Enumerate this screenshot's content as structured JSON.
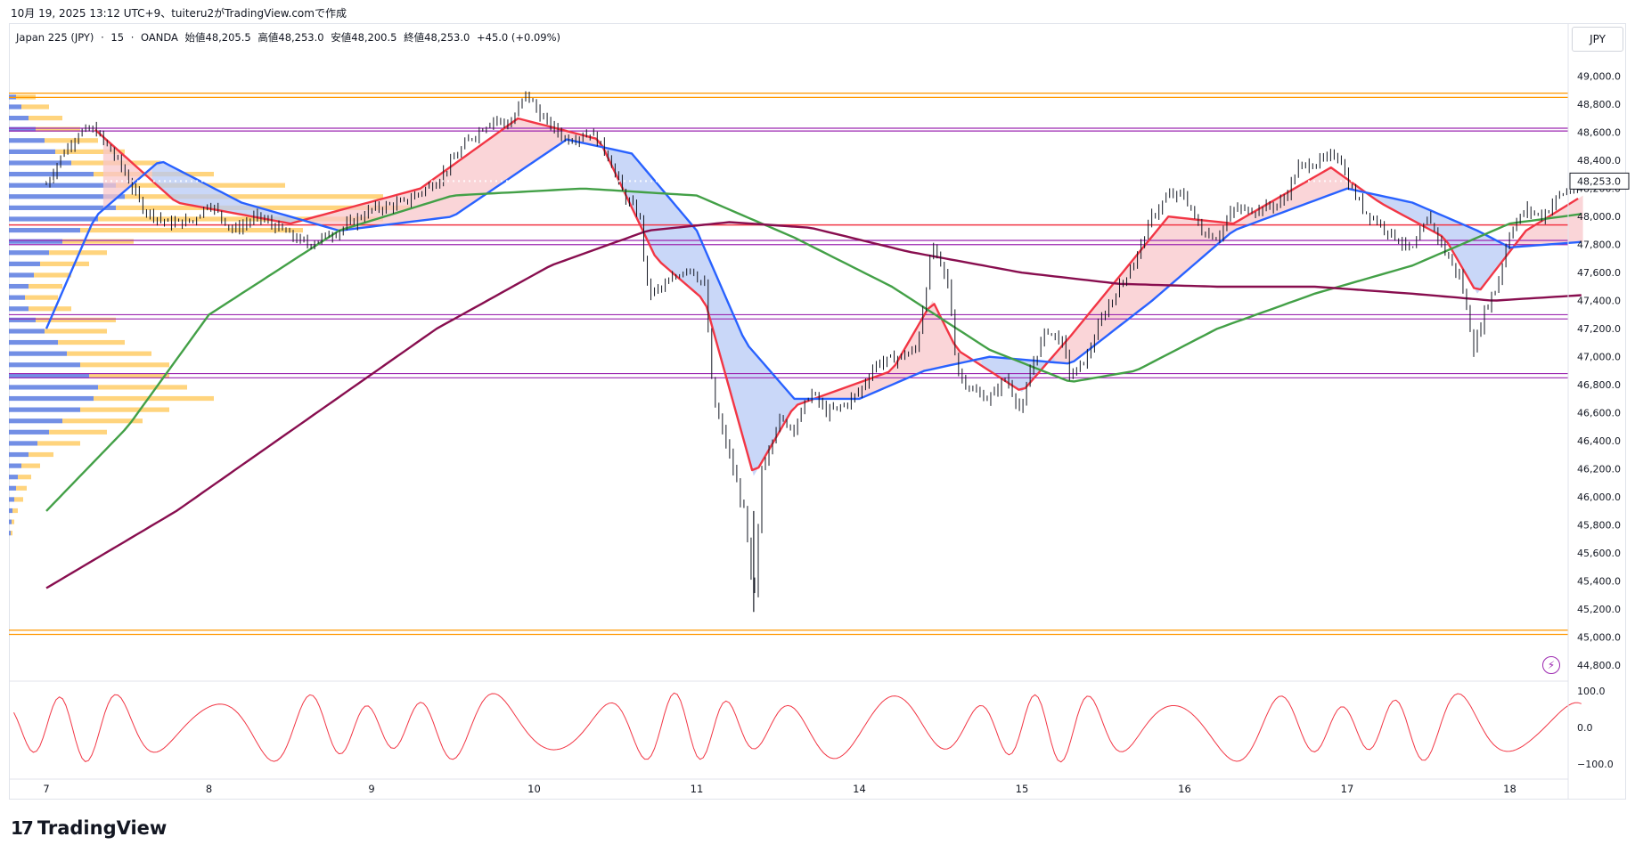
{
  "header": {
    "caption": "10月 19, 2025 13:12 UTC+9、tuiteru2がTradingView.comで作成"
  },
  "legend": {
    "symbol": "Japan 225 (JPY)",
    "interval": "15",
    "broker": "OANDA",
    "open": "始値48,205.5",
    "high": "高値48,253.0",
    "low": "安値48,200.5",
    "close": "終値48,253.0",
    "change": "+45.0 (+0.09%)"
  },
  "currency": "JPY",
  "brand": {
    "name": "TradingView"
  },
  "colors": {
    "candle": "#131722",
    "ma_fast": "#f23645",
    "ma_mid": "#2962ff",
    "ma_slow": "#43a047",
    "ma_long": "#880e4f",
    "band_red": "#f8c7cb",
    "band_blue": "#b7c9f5",
    "level_orange": "#ff9800",
    "level_purple": "#9c27b0",
    "level_red": "#f23645",
    "vp_blue": "#5b7be0",
    "vp_yellow": "#ffcc66",
    "osc": "#f23645"
  },
  "chart_data": {
    "type": "line",
    "subtype": "candlestick-with-indicators",
    "title": "",
    "x_ticks": [
      "7",
      "8",
      "9",
      "10",
      "11",
      "14",
      "15",
      "16",
      "17",
      "18"
    ],
    "y_ticks": [
      "49,000.0",
      "48,800.0",
      "48,600.0",
      "48,400.0",
      "48,200.0",
      "48,000.0",
      "47,800.0",
      "47,600.0",
      "47,400.0",
      "47,200.0",
      "47,000.0",
      "46,800.0",
      "46,600.0",
      "46,400.0",
      "46,200.0",
      "46,000.0",
      "45,800.0",
      "45,600.0",
      "45,400.0",
      "45,200.0",
      "45,000.0",
      "44,800.0"
    ],
    "ylim": [
      44750,
      49100
    ],
    "last_price": "48,253.0",
    "horizontal_levels": [
      {
        "value": 48880,
        "color": "orange"
      },
      {
        "value": 48850,
        "color": "orange"
      },
      {
        "value": 48630,
        "color": "purple"
      },
      {
        "value": 48610,
        "color": "purple"
      },
      {
        "value": 47940,
        "color": "red"
      },
      {
        "value": 47830,
        "color": "purple"
      },
      {
        "value": 47800,
        "color": "purple"
      },
      {
        "value": 47300,
        "color": "purple"
      },
      {
        "value": 47270,
        "color": "purple"
      },
      {
        "value": 46880,
        "color": "purple"
      },
      {
        "value": 46850,
        "color": "purple"
      },
      {
        "value": 45050,
        "color": "orange"
      },
      {
        "value": 45020,
        "color": "orange"
      }
    ],
    "price_path": [
      [
        0,
        48230
      ],
      [
        0.1,
        48450
      ],
      [
        0.2,
        48600
      ],
      [
        0.3,
        48620
      ],
      [
        0.45,
        48380
      ],
      [
        0.6,
        48050
      ],
      [
        0.75,
        47950
      ],
      [
        0.9,
        47970
      ],
      [
        1.0,
        48100
      ],
      [
        1.15,
        47900
      ],
      [
        1.3,
        48000
      ],
      [
        1.45,
        47900
      ],
      [
        1.6,
        47800
      ],
      [
        1.8,
        47900
      ],
      [
        2.0,
        48050
      ],
      [
        2.2,
        48100
      ],
      [
        2.4,
        48250
      ],
      [
        2.6,
        48550
      ],
      [
        2.75,
        48700
      ],
      [
        2.85,
        48650
      ],
      [
        2.95,
        48880
      ],
      [
        3.05,
        48700
      ],
      [
        3.2,
        48550
      ],
      [
        3.35,
        48600
      ],
      [
        3.45,
        48450
      ],
      [
        3.55,
        48150
      ],
      [
        3.65,
        48000
      ],
      [
        3.7,
        47450
      ],
      [
        3.8,
        47500
      ],
      [
        3.95,
        47650
      ],
      [
        4.05,
        47500
      ],
      [
        4.1,
        46700
      ],
      [
        4.2,
        46300
      ],
      [
        4.3,
        45850
      ],
      [
        4.35,
        45180
      ],
      [
        4.4,
        46200
      ],
      [
        4.5,
        46550
      ],
      [
        4.6,
        46500
      ],
      [
        4.7,
        46750
      ],
      [
        4.8,
        46600
      ],
      [
        4.9,
        46650
      ],
      [
        5.0,
        46750
      ],
      [
        5.1,
        46950
      ],
      [
        5.25,
        47000
      ],
      [
        5.35,
        47050
      ],
      [
        5.45,
        47800
      ],
      [
        5.55,
        47500
      ],
      [
        5.6,
        46900
      ],
      [
        5.7,
        46750
      ],
      [
        5.8,
        46700
      ],
      [
        5.9,
        46850
      ],
      [
        6.0,
        46600
      ],
      [
        6.05,
        46900
      ],
      [
        6.15,
        47200
      ],
      [
        6.25,
        47100
      ],
      [
        6.3,
        46850
      ],
      [
        6.4,
        47000
      ],
      [
        6.5,
        47300
      ],
      [
        6.6,
        47500
      ],
      [
        6.7,
        47700
      ],
      [
        6.8,
        48000
      ],
      [
        6.9,
        48150
      ],
      [
        7.0,
        48150
      ],
      [
        7.1,
        47900
      ],
      [
        7.2,
        47850
      ],
      [
        7.3,
        48050
      ],
      [
        7.45,
        48050
      ],
      [
        7.6,
        48100
      ],
      [
        7.7,
        48350
      ],
      [
        7.85,
        48400
      ],
      [
        7.95,
        48450
      ],
      [
        8.0,
        48250
      ],
      [
        8.1,
        48050
      ],
      [
        8.2,
        47950
      ],
      [
        8.3,
        47850
      ],
      [
        8.4,
        47750
      ],
      [
        8.5,
        48000
      ],
      [
        8.6,
        47750
      ],
      [
        8.7,
        47550
      ],
      [
        8.78,
        47050
      ],
      [
        8.85,
        47350
      ],
      [
        8.92,
        47500
      ],
      [
        9.0,
        47900
      ],
      [
        9.1,
        48050
      ],
      [
        9.2,
        48000
      ],
      [
        9.3,
        48150
      ],
      [
        9.4,
        48200
      ],
      [
        9.45,
        48253
      ]
    ],
    "series": [
      {
        "values": [
          [
            0.3,
            48620
          ],
          [
            0.8,
            48100
          ],
          [
            1.5,
            47950
          ],
          [
            2.3,
            48200
          ],
          [
            2.9,
            48700
          ],
          [
            3.4,
            48550
          ],
          [
            3.75,
            47700
          ],
          [
            4.05,
            47400
          ],
          [
            4.35,
            46150
          ],
          [
            4.6,
            46650
          ],
          [
            5.2,
            46900
          ],
          [
            5.45,
            47400
          ],
          [
            5.6,
            47050
          ],
          [
            6.0,
            46750
          ],
          [
            6.3,
            47150
          ],
          [
            6.9,
            48000
          ],
          [
            7.3,
            47950
          ],
          [
            7.9,
            48350
          ],
          [
            8.2,
            48100
          ],
          [
            8.6,
            47850
          ],
          [
            8.8,
            47450
          ],
          [
            9.1,
            47900
          ],
          [
            9.45,
            48150
          ]
        ]
      },
      {
        "values": [
          [
            0.0,
            47200
          ],
          [
            0.3,
            48000
          ],
          [
            0.7,
            48400
          ],
          [
            1.2,
            48100
          ],
          [
            1.8,
            47900
          ],
          [
            2.5,
            48000
          ],
          [
            3.2,
            48550
          ],
          [
            3.6,
            48450
          ],
          [
            4.0,
            47900
          ],
          [
            4.3,
            47100
          ],
          [
            4.6,
            46700
          ],
          [
            5.0,
            46700
          ],
          [
            5.4,
            46900
          ],
          [
            5.8,
            47000
          ],
          [
            6.3,
            46950
          ],
          [
            6.8,
            47400
          ],
          [
            7.3,
            47900
          ],
          [
            8.0,
            48200
          ],
          [
            8.4,
            48100
          ],
          [
            8.8,
            47900
          ],
          [
            9.0,
            47780
          ],
          [
            9.45,
            47820
          ]
        ]
      },
      {
        "values": [
          [
            0.0,
            45900
          ],
          [
            0.5,
            46500
          ],
          [
            1.0,
            47300
          ],
          [
            1.8,
            47900
          ],
          [
            2.5,
            48150
          ],
          [
            3.3,
            48200
          ],
          [
            4.0,
            48150
          ],
          [
            4.6,
            47850
          ],
          [
            5.2,
            47500
          ],
          [
            5.8,
            47050
          ],
          [
            6.3,
            46820
          ],
          [
            6.7,
            46900
          ],
          [
            7.2,
            47200
          ],
          [
            7.8,
            47450
          ],
          [
            8.4,
            47650
          ],
          [
            9.0,
            47950
          ],
          [
            9.45,
            48020
          ]
        ]
      },
      {
        "values": [
          [
            0.0,
            45350
          ],
          [
            0.8,
            45900
          ],
          [
            1.6,
            46550
          ],
          [
            2.4,
            47200
          ],
          [
            3.1,
            47650
          ],
          [
            3.7,
            47900
          ],
          [
            4.2,
            47960
          ],
          [
            4.7,
            47920
          ],
          [
            5.3,
            47750
          ],
          [
            6.0,
            47600
          ],
          [
            6.6,
            47520
          ],
          [
            7.2,
            47500
          ],
          [
            7.8,
            47500
          ],
          [
            8.4,
            47450
          ],
          [
            8.9,
            47400
          ],
          [
            9.45,
            47440
          ]
        ]
      }
    ],
    "oscillator": {
      "ticks": [
        "100.0",
        "0.0",
        "−100.0"
      ],
      "ylim": [
        -110,
        110
      ]
    }
  }
}
